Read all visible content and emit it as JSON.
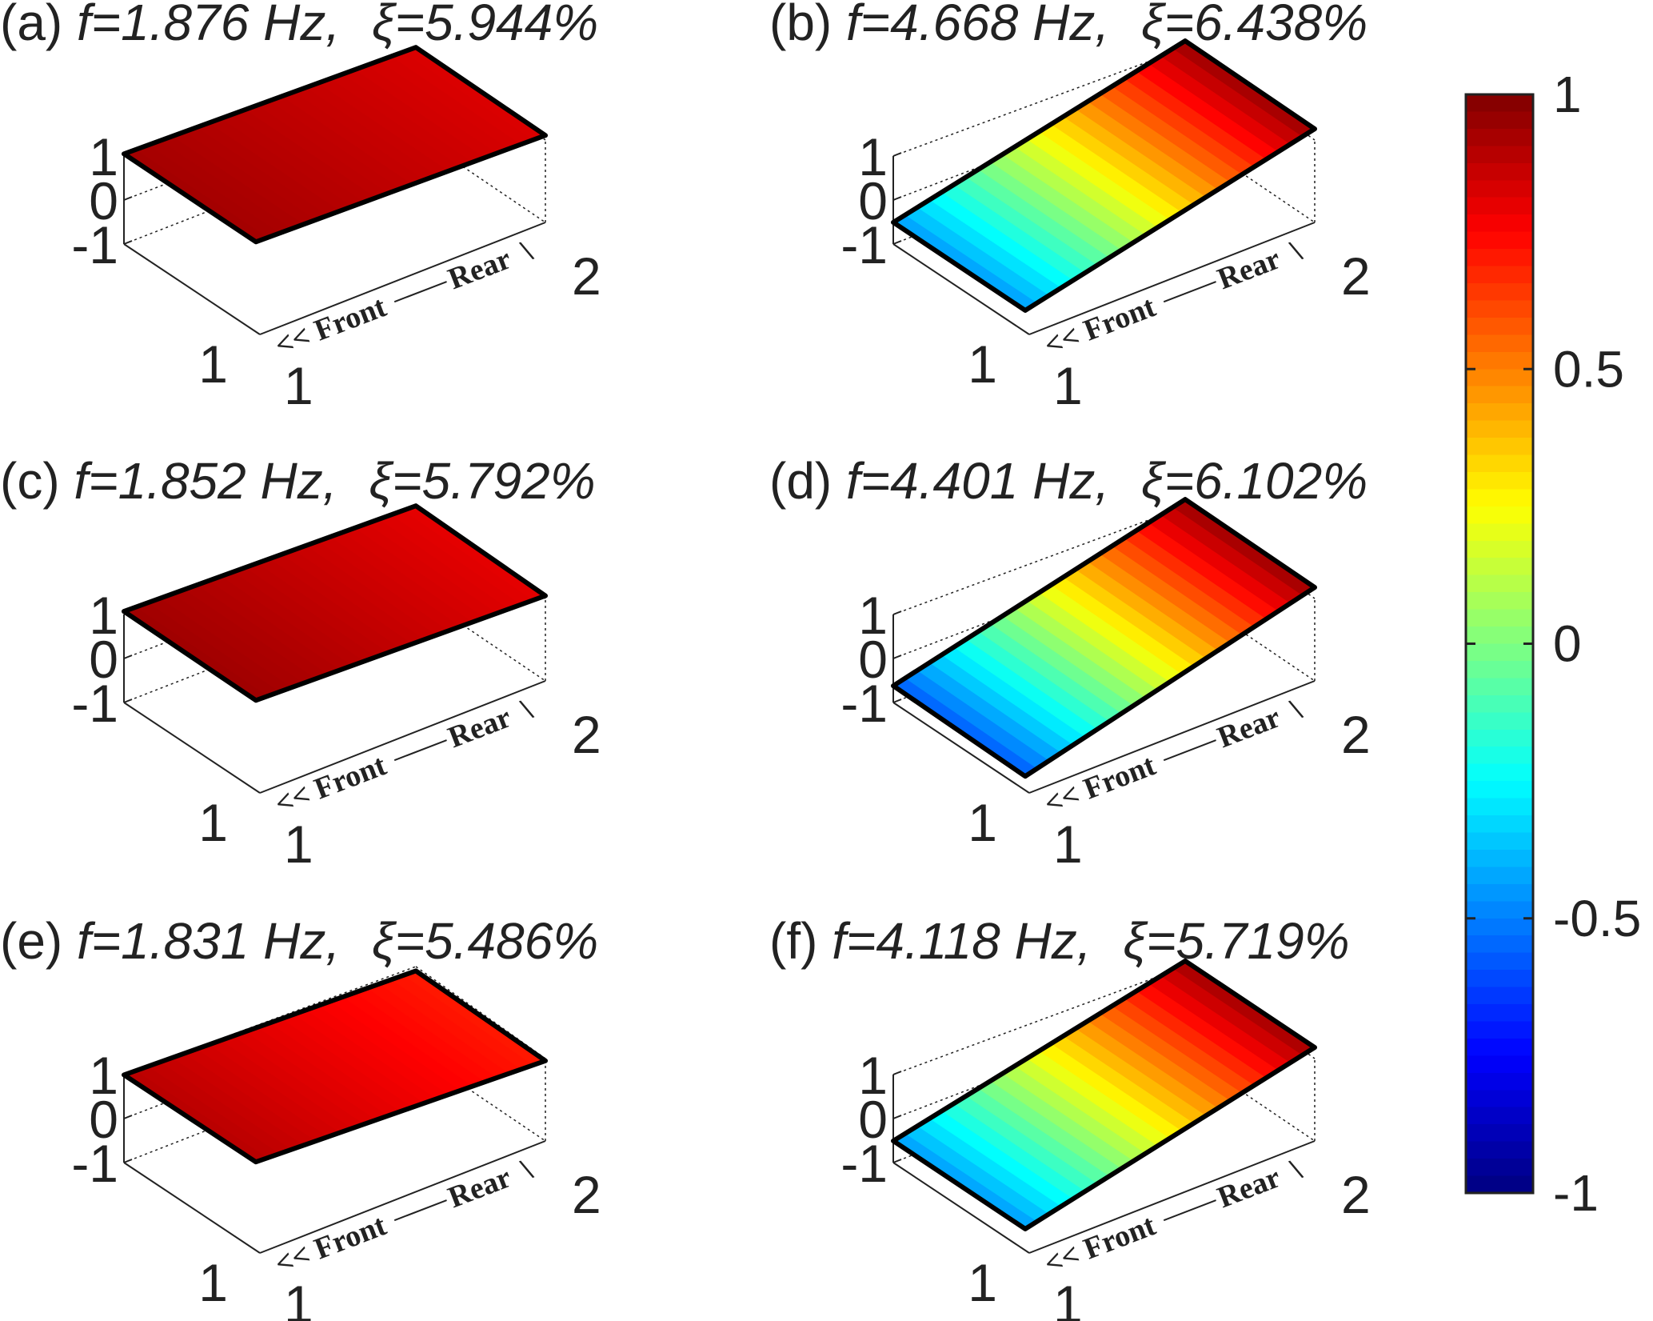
{
  "chart_data": {
    "type": "heatmap",
    "colormap": "jet",
    "colorbar": {
      "range": [
        -1,
        1
      ],
      "ticks": [
        "1",
        "0.5",
        "0",
        "-0.5",
        "-1"
      ],
      "placement": "right"
    },
    "panels": [
      {
        "label": "(a)",
        "f_text": "f=1.876 Hz,",
        "xi_symbol": "ξ",
        "xi_text": "=5.944%",
        "frequency_hz": 1.876,
        "damping_percent": 5.944,
        "corner_values": {
          "front_left": 0.93,
          "front_right": 0.93,
          "rear_left": 0.82,
          "rear_right": 0.82
        }
      },
      {
        "label": "(b)",
        "f_text": "f=4.668 Hz,",
        "xi_symbol": "ξ",
        "xi_text": "=6.438%",
        "frequency_hz": 4.668,
        "damping_percent": 6.438,
        "corner_values": {
          "front_left": -0.45,
          "front_right": -0.45,
          "rear_left": 0.95,
          "rear_right": 0.95
        }
      },
      {
        "label": "(c)",
        "f_text": "f=1.852 Hz,",
        "xi_symbol": "ξ",
        "xi_text": "=5.792%",
        "frequency_hz": 1.852,
        "damping_percent": 5.792,
        "corner_values": {
          "front_left": 0.93,
          "front_right": 0.95,
          "rear_left": 0.78,
          "rear_right": 0.82
        }
      },
      {
        "label": "(d)",
        "f_text": "f=4.401 Hz,",
        "xi_symbol": "ξ",
        "xi_text": "=6.102%",
        "frequency_hz": 4.401,
        "damping_percent": 6.102,
        "corner_values": {
          "front_left": -0.6,
          "front_right": -0.55,
          "rear_left": 0.95,
          "rear_right": 0.95
        }
      },
      {
        "label": "(e)",
        "f_text": "f=1.831 Hz,",
        "xi_symbol": "ξ",
        "xi_text": "=5.486%",
        "frequency_hz": 1.831,
        "damping_percent": 5.486,
        "corner_values": {
          "front_left": 0.9,
          "front_right": 0.88,
          "rear_left": 0.68,
          "rear_right": 0.72
        }
      },
      {
        "label": "(f)",
        "f_text": "f=4.118 Hz,",
        "xi_symbol": "ξ",
        "xi_text": "=5.719%",
        "frequency_hz": 4.118,
        "damping_percent": 5.719,
        "corner_values": {
          "front_left": -0.45,
          "front_right": -0.45,
          "rear_left": 0.95,
          "rear_right": 0.92
        }
      }
    ],
    "axes": {
      "z_ticks": [
        "1",
        "0",
        "-1"
      ],
      "zlim": [
        -1,
        1
      ],
      "x_ticks": [
        "1",
        "2"
      ],
      "y_ticks": [
        "1"
      ],
      "front_label": "<< Front",
      "rear_label": "Rear",
      "bracket_text": "\\"
    }
  }
}
